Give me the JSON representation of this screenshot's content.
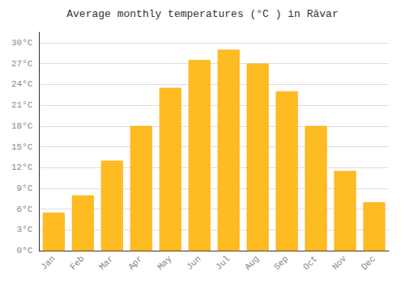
{
  "chart_data": {
    "type": "bar",
    "title": "Average monthly temperatures (°C ) in Rāvar",
    "categories": [
      "Jan",
      "Feb",
      "Mar",
      "Apr",
      "May",
      "Jun",
      "Jul",
      "Aug",
      "Sep",
      "Oct",
      "Nov",
      "Dec"
    ],
    "values": [
      5.5,
      8.0,
      13.0,
      18.0,
      23.5,
      27.5,
      29.0,
      27.0,
      23.0,
      18.0,
      11.5,
      7.0
    ],
    "color": "#FFBB22",
    "ylim": [
      0,
      31.5
    ],
    "yticks": [
      {
        "value": 0,
        "label": "0°C"
      },
      {
        "value": 3,
        "label": "3°C"
      },
      {
        "value": 6,
        "label": "6°C"
      },
      {
        "value": 9,
        "label": "9°C"
      },
      {
        "value": 12,
        "label": "12°C"
      },
      {
        "value": 15,
        "label": "15°C"
      },
      {
        "value": 18,
        "label": "18°C"
      },
      {
        "value": 21,
        "label": "21°C"
      },
      {
        "value": 24,
        "label": "24°C"
      },
      {
        "value": 27,
        "label": "27°C"
      },
      {
        "value": 30,
        "label": "30°C"
      }
    ],
    "grid": true
  }
}
